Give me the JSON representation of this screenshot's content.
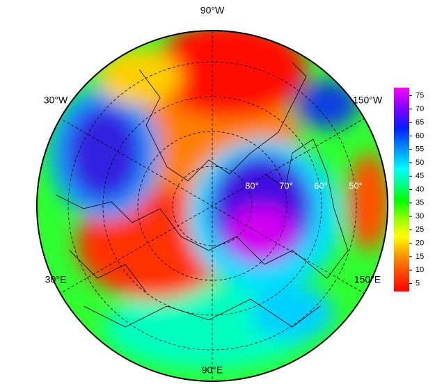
{
  "map": {
    "longitude_labels": [
      "90°W",
      "30°W",
      "150°W",
      "30°E",
      "150°E",
      "90°E"
    ],
    "latitude_labels": [
      "80°",
      "70°",
      "60°",
      "50°"
    ],
    "colorbar": {
      "lim": [
        2,
        78
      ],
      "ticks": [
        5,
        10,
        15,
        20,
        25,
        30,
        35,
        40,
        45,
        50,
        55,
        60,
        65,
        70,
        75
      ]
    }
  }
}
